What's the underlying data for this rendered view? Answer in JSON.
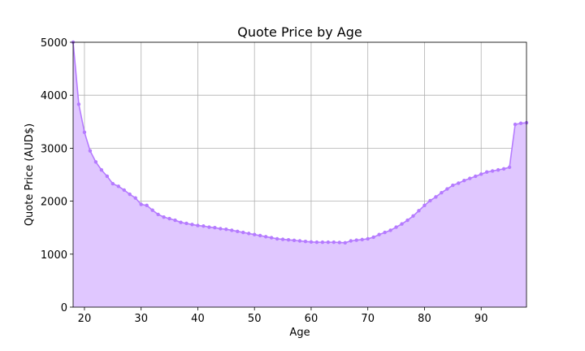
{
  "chart_data": {
    "type": "area",
    "title": "Quote Price by Age",
    "xlabel": "Age",
    "ylabel": "Quote Price (AUD$)",
    "xlim": [
      18,
      98
    ],
    "ylim": [
      0,
      5000
    ],
    "xticks": [
      20,
      30,
      40,
      50,
      60,
      70,
      80,
      90
    ],
    "yticks": [
      0,
      1000,
      2000,
      3000,
      4000,
      5000
    ],
    "grid": true,
    "line_color": "#b57bff",
    "fill_color": "#e0c7ff",
    "series": [
      {
        "x": [
          18,
          19,
          20,
          21,
          22,
          23,
          24,
          25,
          26,
          27,
          28,
          29,
          30,
          31,
          32,
          33,
          34,
          35,
          36,
          37,
          38,
          39,
          40,
          41,
          42,
          43,
          44,
          45,
          46,
          47,
          48,
          49,
          50,
          51,
          52,
          53,
          54,
          55,
          56,
          57,
          58,
          59,
          60,
          61,
          62,
          63,
          64,
          65,
          66,
          67,
          68,
          69,
          70,
          71,
          72,
          73,
          74,
          75,
          76,
          77,
          78,
          79,
          80,
          81,
          82,
          83,
          84,
          85,
          86,
          87,
          88,
          89,
          90,
          91,
          92,
          93,
          94,
          95,
          96,
          97,
          98
        ],
        "y": [
          5000,
          3830,
          3300,
          2950,
          2740,
          2590,
          2470,
          2330,
          2280,
          2210,
          2130,
          2060,
          1940,
          1920,
          1830,
          1750,
          1700,
          1670,
          1640,
          1600,
          1580,
          1560,
          1540,
          1530,
          1510,
          1500,
          1480,
          1470,
          1450,
          1430,
          1410,
          1390,
          1370,
          1350,
          1330,
          1310,
          1290,
          1280,
          1270,
          1260,
          1250,
          1240,
          1230,
          1225,
          1225,
          1225,
          1225,
          1220,
          1215,
          1250,
          1265,
          1275,
          1290,
          1320,
          1370,
          1410,
          1450,
          1510,
          1570,
          1640,
          1720,
          1820,
          1920,
          2010,
          2080,
          2160,
          2230,
          2300,
          2340,
          2390,
          2430,
          2470,
          2510,
          2550,
          2570,
          2590,
          2610,
          2640,
          3450,
          3470,
          3480
        ]
      }
    ]
  }
}
